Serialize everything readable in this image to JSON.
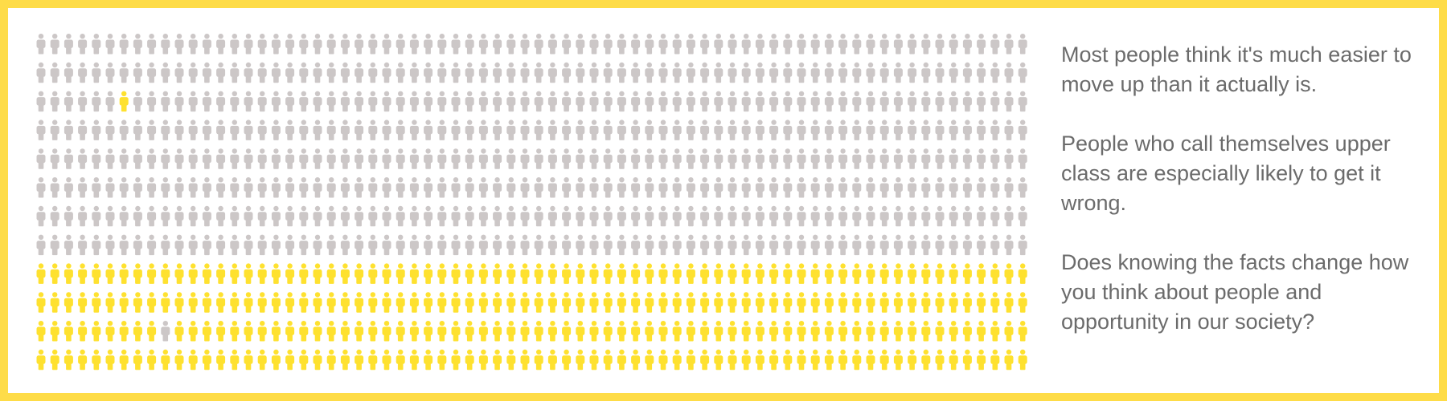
{
  "chart_data": {
    "type": "pictogram",
    "rows": 12,
    "columns": 72,
    "total_icons": 864,
    "series": [
      {
        "color": "#ccc7c7",
        "count": 575
      },
      {
        "color": "#fee12f",
        "count": 289
      }
    ],
    "highlighted_icon_row_col": [
      2,
      6
    ],
    "gray_icon_in_yellow_row_col": [
      10,
      9
    ]
  },
  "colors": {
    "frame": "#fedc48",
    "text": "#6b6b6b",
    "icon_gray": "#ccc7c7",
    "icon_yellow": "#fee12f"
  },
  "paragraphs": [
    "Most people think it's much easier to move up than it actually is.",
    "People who call themselves upper class are especially likely to get it wrong.",
    "Does knowing the facts change how you think about people and opportunity in our society?"
  ]
}
